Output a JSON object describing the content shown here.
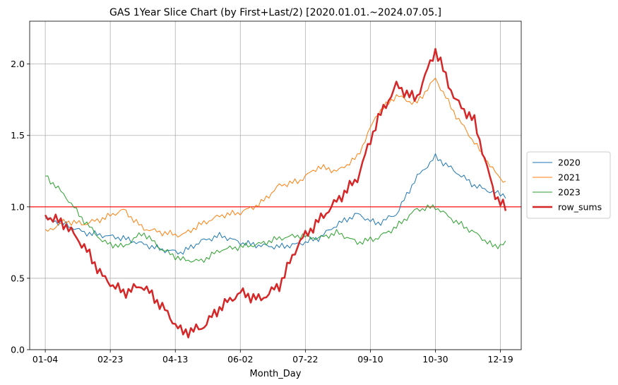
{
  "chart_data": {
    "type": "line",
    "title": "GAS 1Year Slice Chart (by First+Last/2) [2020.01.01.~2024.07.05.]",
    "xlabel": "Month_Day",
    "ylabel": "",
    "x_ticks": [
      "01-04",
      "02-23",
      "04-13",
      "06-02",
      "07-22",
      "09-10",
      "10-30",
      "12-19"
    ],
    "y_ticks": [
      "0.0",
      "0.5",
      "1.0",
      "1.5",
      "2.0"
    ],
    "ylim": [
      0,
      2.3
    ],
    "grid": true,
    "legend_position": "right",
    "reference_line": {
      "y": 1.0,
      "color": "#ff0000"
    },
    "x_days": [
      0,
      15,
      30,
      45,
      60,
      75,
      90,
      105,
      120,
      135,
      150,
      165,
      180,
      195,
      210,
      225,
      240,
      255,
      270,
      285,
      300,
      315,
      330,
      345,
      355
    ],
    "series": [
      {
        "name": "2020",
        "color": "#1f77b4",
        "width": 1,
        "values": [
          0.92,
          0.88,
          0.82,
          0.8,
          0.78,
          0.74,
          0.7,
          0.68,
          0.76,
          0.8,
          0.75,
          0.73,
          0.72,
          0.74,
          0.78,
          0.88,
          0.95,
          0.88,
          0.95,
          1.2,
          1.35,
          1.25,
          1.15,
          1.1,
          1.08
        ]
      },
      {
        "name": "2021",
        "color": "#ff7f0e",
        "width": 1,
        "values": [
          0.82,
          0.9,
          0.88,
          0.92,
          0.98,
          0.85,
          0.82,
          0.8,
          0.88,
          0.94,
          0.96,
          1.02,
          1.15,
          1.18,
          1.28,
          1.25,
          1.35,
          1.65,
          1.78,
          1.72,
          1.9,
          1.65,
          1.45,
          1.25,
          1.16
        ]
      },
      {
        "name": "2023",
        "color": "#2ca02c",
        "width": 1,
        "values": [
          1.22,
          1.08,
          0.9,
          0.75,
          0.72,
          0.82,
          0.7,
          0.63,
          0.62,
          0.7,
          0.72,
          0.74,
          0.78,
          0.8,
          0.78,
          0.82,
          0.75,
          0.78,
          0.86,
          0.98,
          1.0,
          0.9,
          0.82,
          0.72,
          0.75
        ]
      },
      {
        "name": "row_sums",
        "color": "#d62728",
        "width": 2.5,
        "values": [
          0.94,
          0.88,
          0.72,
          0.5,
          0.4,
          0.45,
          0.3,
          0.12,
          0.15,
          0.3,
          0.4,
          0.35,
          0.45,
          0.75,
          0.9,
          1.05,
          1.2,
          1.6,
          1.85,
          1.75,
          2.1,
          1.75,
          1.6,
          1.1,
          0.97
        ]
      }
    ]
  }
}
